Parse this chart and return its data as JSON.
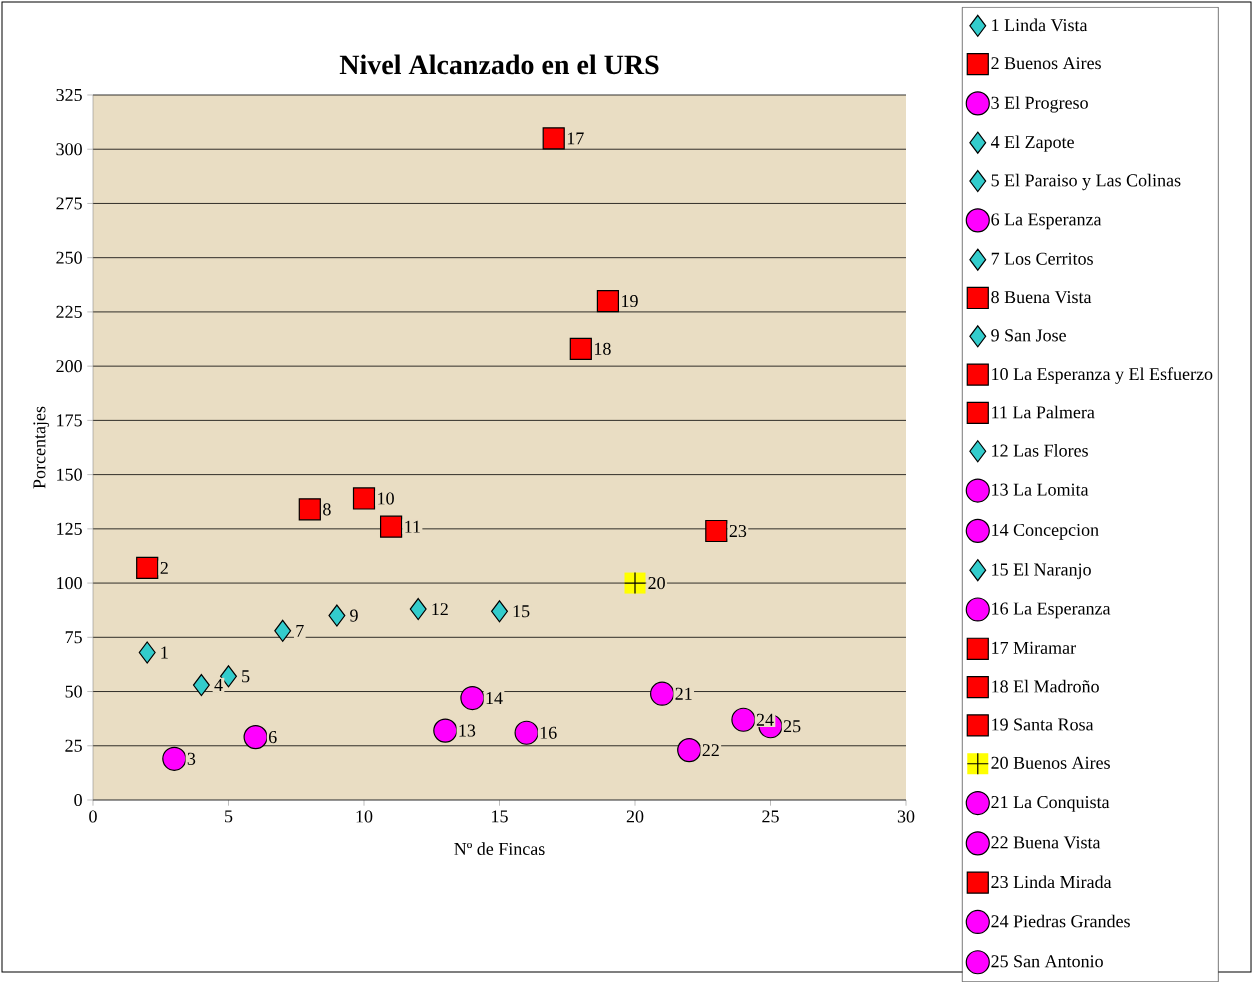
{
  "chart_data": {
    "type": "scatter",
    "title": "Nivel Alcanzado en el URS",
    "xlabel": "Nº de Fincas",
    "ylabel": "Porcentajes",
    "xlim": [
      0,
      30
    ],
    "ylim": [
      0,
      325
    ],
    "xticks": [
      0,
      5,
      10,
      15,
      20,
      25,
      30
    ],
    "yticks": [
      0,
      25,
      50,
      75,
      100,
      125,
      150,
      175,
      200,
      225,
      250,
      275,
      300,
      325
    ],
    "grid": "y",
    "legend": "right",
    "annotations": [
      {
        "text": "1",
        "x": 2,
        "y": 68
      },
      {
        "text": "2",
        "x": 2,
        "y": 107
      },
      {
        "text": "3",
        "x": 3,
        "y": 19
      },
      {
        "text": "4",
        "x": 4,
        "y": 53
      },
      {
        "text": "5",
        "x": 5,
        "y": 57
      },
      {
        "text": "6",
        "x": 6,
        "y": 29
      },
      {
        "text": "7",
        "x": 7,
        "y": 78
      },
      {
        "text": "8",
        "x": 8,
        "y": 134
      },
      {
        "text": "9",
        "x": 9,
        "y": 85
      },
      {
        "text": "10",
        "x": 10,
        "y": 139
      },
      {
        "text": "11",
        "x": 11,
        "y": 126
      },
      {
        "text": "12",
        "x": 12,
        "y": 88
      },
      {
        "text": "13",
        "x": 13,
        "y": 32
      },
      {
        "text": "14",
        "x": 14,
        "y": 47
      },
      {
        "text": "15",
        "x": 15,
        "y": 87
      },
      {
        "text": "16",
        "x": 16,
        "y": 31
      },
      {
        "text": "17",
        "x": 17,
        "y": 305
      },
      {
        "text": "18",
        "x": 18,
        "y": 208
      },
      {
        "text": "19",
        "x": 19,
        "y": 230
      },
      {
        "text": "20",
        "x": 20,
        "y": 100
      },
      {
        "text": "21",
        "x": 21,
        "y": 49
      },
      {
        "text": "22",
        "x": 22,
        "y": 23
      },
      {
        "text": "23",
        "x": 23,
        "y": 124
      },
      {
        "text": "24",
        "x": 24,
        "y": 37
      },
      {
        "text": "25",
        "x": 25,
        "y": 34
      }
    ],
    "series": [
      {
        "name": "1 Linda Vista",
        "color": "#33cccc",
        "marker": "diamond",
        "x": [
          2
        ],
        "values": [
          68
        ]
      },
      {
        "name": "2 Buenos Aires",
        "color": "#ff0000",
        "marker": "square",
        "x": [
          2
        ],
        "values": [
          107
        ]
      },
      {
        "name": "3 El Progreso",
        "color": "#ff00ff",
        "marker": "circle",
        "x": [
          3
        ],
        "values": [
          19
        ]
      },
      {
        "name": "4 El Zapote",
        "color": "#33cccc",
        "marker": "diamond",
        "x": [
          4
        ],
        "values": [
          53
        ]
      },
      {
        "name": "5 El Paraiso y Las Colinas",
        "color": "#33cccc",
        "marker": "diamond",
        "x": [
          5
        ],
        "values": [
          57
        ]
      },
      {
        "name": "6 La Esperanza",
        "color": "#ff00ff",
        "marker": "circle",
        "x": [
          6
        ],
        "values": [
          29
        ]
      },
      {
        "name": "7 Los Cerritos",
        "color": "#33cccc",
        "marker": "diamond",
        "x": [
          7
        ],
        "values": [
          78
        ]
      },
      {
        "name": "8 Buena Vista",
        "color": "#ff0000",
        "marker": "square",
        "x": [
          8
        ],
        "values": [
          134
        ]
      },
      {
        "name": "9 San Jose",
        "color": "#33cccc",
        "marker": "diamond",
        "x": [
          9
        ],
        "values": [
          85
        ]
      },
      {
        "name": "10 La Esperanza y El Esfuerzo",
        "color": "#ff0000",
        "marker": "square",
        "x": [
          10
        ],
        "values": [
          139
        ]
      },
      {
        "name": "11 La Palmera",
        "color": "#ff0000",
        "marker": "square",
        "x": [
          11
        ],
        "values": [
          126
        ]
      },
      {
        "name": "12 Las Flores",
        "color": "#33cccc",
        "marker": "diamond",
        "x": [
          12
        ],
        "values": [
          88
        ]
      },
      {
        "name": "13 La Lomita",
        "color": "#ff00ff",
        "marker": "circle",
        "x": [
          13
        ],
        "values": [
          32
        ]
      },
      {
        "name": "14 Concepcion",
        "color": "#ff00ff",
        "marker": "circle",
        "x": [
          14
        ],
        "values": [
          47
        ]
      },
      {
        "name": "15 El Naranjo",
        "color": "#33cccc",
        "marker": "diamond",
        "x": [
          15
        ],
        "values": [
          87
        ]
      },
      {
        "name": "16 La Esperanza",
        "color": "#ff00ff",
        "marker": "circle",
        "x": [
          16
        ],
        "values": [
          31
        ]
      },
      {
        "name": "17 Miramar",
        "color": "#ff0000",
        "marker": "square",
        "x": [
          17
        ],
        "values": [
          305
        ]
      },
      {
        "name": "18 El Madroño",
        "color": "#ff0000",
        "marker": "square",
        "x": [
          18
        ],
        "values": [
          208
        ]
      },
      {
        "name": "19 Santa Rosa",
        "color": "#ff0000",
        "marker": "square",
        "x": [
          19
        ],
        "values": [
          230
        ]
      },
      {
        "name": "20 Buenos Aires",
        "color": "#ffff00",
        "marker": "square",
        "x": [
          20
        ],
        "values": [
          100
        ]
      },
      {
        "name": "21 La Conquista",
        "color": "#ff00ff",
        "marker": "circle",
        "x": [
          21
        ],
        "values": [
          49
        ]
      },
      {
        "name": "22 Buena Vista",
        "color": "#ff00ff",
        "marker": "circle",
        "x": [
          22
        ],
        "values": [
          23
        ]
      },
      {
        "name": "23 Linda Mirada",
        "color": "#ff0000",
        "marker": "square",
        "x": [
          23
        ],
        "values": [
          124
        ]
      },
      {
        "name": "24 Piedras Grandes",
        "color": "#ff00ff",
        "marker": "circle",
        "x": [
          24
        ],
        "values": [
          37
        ]
      },
      {
        "name": "25 San Antonio",
        "color": "#ff00ff",
        "marker": "circle",
        "x": [
          25
        ],
        "values": [
          34
        ]
      }
    ]
  }
}
